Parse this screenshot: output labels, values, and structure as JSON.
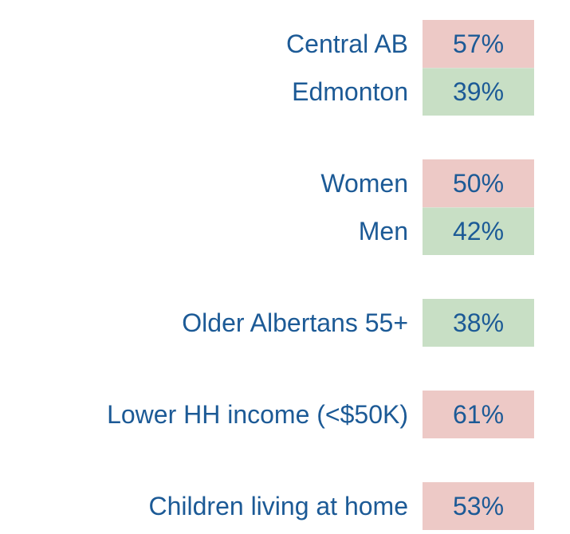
{
  "groups": [
    {
      "rows": [
        {
          "label": "Central AB",
          "value": "57%",
          "color": "#edc9c6"
        },
        {
          "label": "Edmonton",
          "value": "39%",
          "color": "#c8dfc5"
        }
      ]
    },
    {
      "rows": [
        {
          "label": "Women",
          "value": "50%",
          "color": "#edc9c6"
        },
        {
          "label": "Men",
          "value": "42%",
          "color": "#c8dfc5"
        }
      ]
    },
    {
      "rows": [
        {
          "label": "Older Albertans 55+",
          "value": "38%",
          "color": "#c8dfc5"
        }
      ]
    },
    {
      "rows": [
        {
          "label": "Lower HH income (<$50K)",
          "value": "61%",
          "color": "#edc9c6"
        }
      ]
    },
    {
      "rows": [
        {
          "label": "Children living at home",
          "value": "53%",
          "color": "#edc9c6"
        }
      ]
    }
  ]
}
